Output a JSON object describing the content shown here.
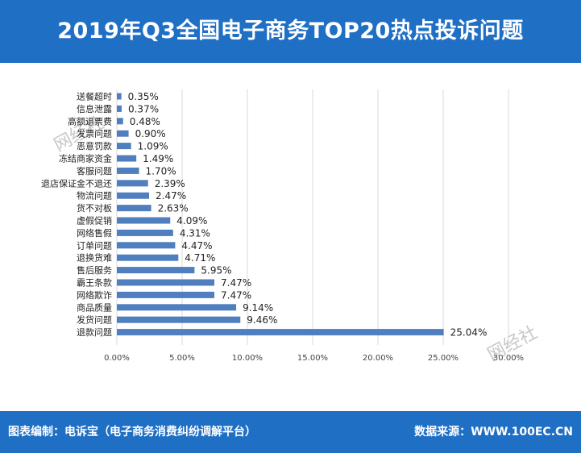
{
  "page": {
    "title": "2019年Q3全国电子商务TOP20热点投诉问题",
    "footer_left": "图表编制：电诉宝（电子商务消费纠纷调解平台）",
    "footer_right": "数据来源：WWW.100EC.CN",
    "watermark": "网经社",
    "brand_color": "#1f6fc5",
    "bar_color": "#4f7fbf"
  },
  "chart_data": {
    "type": "bar",
    "orientation": "horizontal",
    "categories": [
      "送餐超时",
      "信息泄露",
      "高额退票费",
      "发票问题",
      "恶意罚款",
      "冻结商家资金",
      "客服问题",
      "退店保证金不退还",
      "物流问题",
      "货不对板",
      "虚假促销",
      "网络售假",
      "订单问题",
      "退换货难",
      "售后服务",
      "霸王条款",
      "网络欺诈",
      "商品质量",
      "发货问题",
      "退款问题"
    ],
    "values": [
      0.35,
      0.37,
      0.48,
      0.9,
      1.09,
      1.49,
      1.7,
      2.39,
      2.47,
      2.63,
      4.09,
      4.31,
      4.47,
      4.71,
      5.95,
      7.47,
      7.47,
      9.14,
      9.46,
      25.04
    ],
    "value_labels": [
      "0.35%",
      "0.37%",
      "0.48%",
      "0.90%",
      "1.09%",
      "1.49%",
      "1.70%",
      "2.39%",
      "2.47%",
      "2.63%",
      "4.09%",
      "4.31%",
      "4.47%",
      "4.71%",
      "5.95%",
      "7.47%",
      "7.47%",
      "9.14%",
      "9.46%",
      "25.04%"
    ],
    "xticks": [
      0,
      5,
      10,
      15,
      20,
      25,
      30
    ],
    "xtick_labels": [
      "0.00%",
      "5.00%",
      "10.00%",
      "15.00%",
      "20.00%",
      "25.00%",
      "30.00%"
    ],
    "xlim": [
      0,
      30
    ],
    "grid": "vertical",
    "legend": "none"
  }
}
